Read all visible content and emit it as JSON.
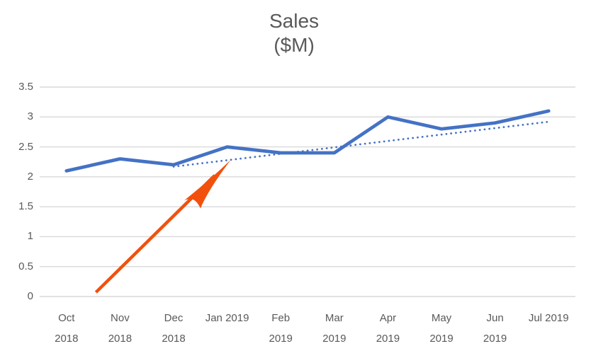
{
  "chart": {
    "title": {
      "line1": "Sales",
      "line2": "($M)"
    }
  },
  "colors": {
    "series": "#4472C4",
    "trendline": "#4472C4",
    "arrow": "#F1510D",
    "gridline": "#D9D9D9",
    "text": "#595959",
    "background": "#FFFFFF"
  },
  "chart_data": {
    "type": "line",
    "title": "Sales ($M)",
    "xlabel": "",
    "ylabel": "",
    "grid": true,
    "legend": "none",
    "ylim": [
      0,
      3.5
    ],
    "y_ticks": [
      "0",
      "0.5",
      "1",
      "1.5",
      "2",
      "2.5",
      "3",
      "3.5"
    ],
    "categories": [
      "Oct 2018",
      "Nov 2018",
      "Dec 2018",
      "Jan 2019",
      "Feb 2019",
      "Mar 2019",
      "Apr 2019",
      "May 2019",
      "Jun 2019",
      "Jul 2019"
    ],
    "x_tick_lines": [
      [
        "Oct",
        "2018"
      ],
      [
        "Nov",
        "2018"
      ],
      [
        "Dec",
        "2018"
      ],
      [
        "Jan 2019"
      ],
      [
        "Feb",
        "2019"
      ],
      [
        "Mar",
        "2019"
      ],
      [
        "Apr",
        "2019"
      ],
      [
        "May",
        "2019"
      ],
      [
        "Jun",
        "2019"
      ],
      [
        "Jul 2019"
      ]
    ],
    "series": [
      {
        "name": "Sales",
        "style": "solid",
        "color": "#4472C4",
        "values": [
          2.1,
          2.3,
          2.2,
          2.5,
          2.4,
          2.4,
          3.0,
          2.8,
          2.9,
          3.1
        ]
      }
    ],
    "trendline": {
      "style": "dotted",
      "color": "#4472C4",
      "start_category": "Dec 2018",
      "start_value": 2.17,
      "end_category": "Jul 2019",
      "end_value": 2.92
    },
    "annotation_arrow": {
      "color": "#F1510D",
      "points_to": "trendline near Jan 2019",
      "start": {
        "category_index": 0.55,
        "value": 0.07
      },
      "tip": {
        "category_index": 3.07,
        "value": 2.29
      }
    }
  }
}
